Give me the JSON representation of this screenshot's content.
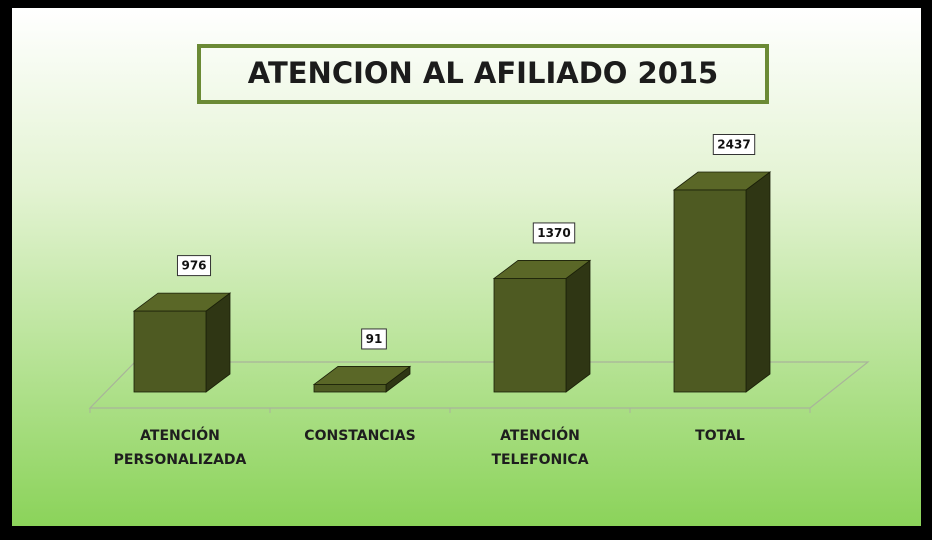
{
  "chart_data": {
    "type": "bar3d",
    "title": "ATENCION AL AFILIADO 2015",
    "categories": [
      "ATENCIÓN PERSONALIZADA",
      "CONSTANCIAS",
      "ATENCIÓN TELEFONICA",
      "TOTAL"
    ],
    "values": [
      976,
      91,
      1370,
      2437
    ],
    "color": "#4e5a22"
  }
}
